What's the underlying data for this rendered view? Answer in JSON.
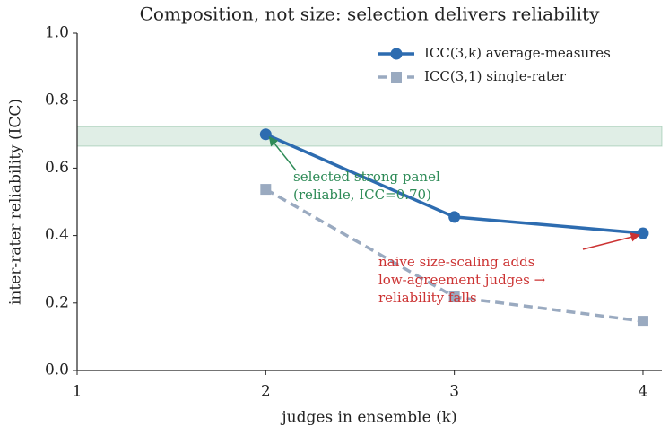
{
  "chart_data": {
    "type": "line",
    "title": "Composition, not size: selection delivers reliability",
    "x_label": "judges in ensemble (k)",
    "y_label": "inter-rater reliability (ICC)",
    "x": [
      2,
      3,
      4
    ],
    "series": [
      {
        "name": "ICC(3,k) average-measures",
        "color": "#2d6cb0",
        "marker": "circle",
        "dashed": false,
        "values": [
          0.7,
          0.455,
          0.407
        ]
      },
      {
        "name": "ICC(3,1) single-rater",
        "color": "#9aaac0",
        "marker": "square",
        "dashed": true,
        "values": [
          0.537,
          0.218,
          0.146
        ]
      }
    ],
    "highlight_band": [
      0.665,
      0.723
    ],
    "band_color": "#2e8b57",
    "annotations": [
      {
        "lines": [
          "selected strong panel",
          "(reliable, ICC=0.70)"
        ],
        "color": "#2e8b57"
      },
      {
        "lines": [
          "naive size-scaling adds",
          "low-agreement judges →",
          "reliability falls"
        ],
        "color": "#cc3333"
      }
    ],
    "xlim": [
      1,
      4.1
    ],
    "ylim": [
      0,
      1.0
    ],
    "xticks": [
      1,
      2,
      3,
      4
    ],
    "yticks": [
      {
        "value": 0,
        "label": "0.0"
      },
      {
        "value": 0.2,
        "label": "0.2"
      },
      {
        "value": 0.4,
        "label": "0.4"
      },
      {
        "value": 0.6,
        "label": "0.6"
      },
      {
        "value": 0.8,
        "label": "0.8"
      },
      {
        "value": 1.0,
        "label": "1.0"
      }
    ],
    "legend": "upper right",
    "grid": false
  }
}
